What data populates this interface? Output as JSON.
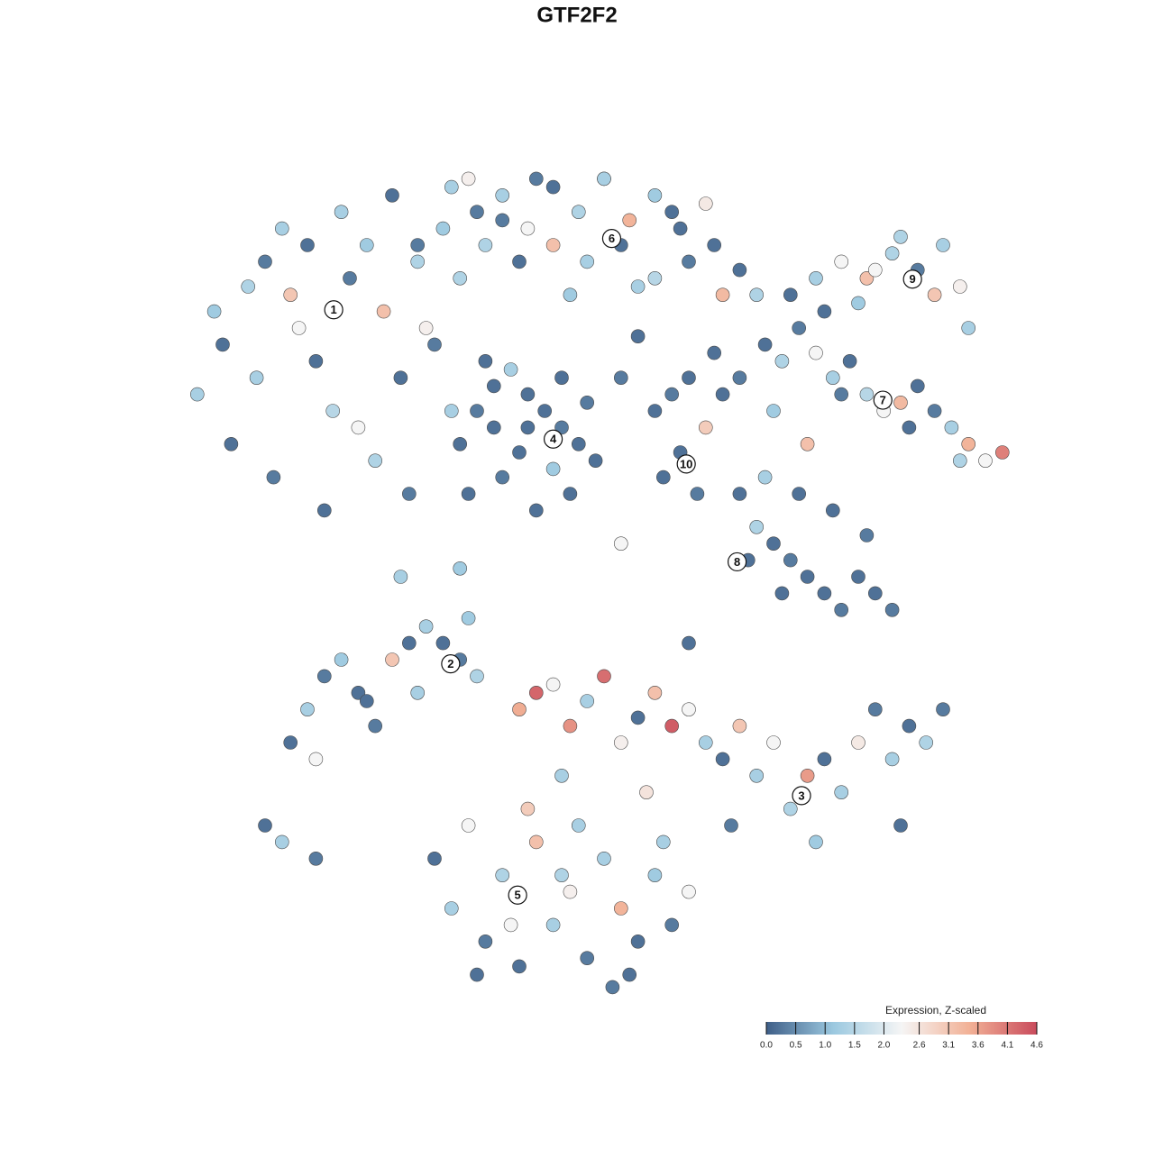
{
  "chart_data": {
    "type": "scatter",
    "title": "GTF2F2",
    "xlim": [
      0,
      100
    ],
    "ylim": [
      0,
      100
    ],
    "x": [
      2,
      5,
      8,
      10,
      12,
      14,
      16,
      18,
      20,
      22,
      24,
      26,
      28,
      30,
      32,
      6,
      11,
      17,
      23,
      29,
      4,
      9,
      15,
      21,
      27,
      33,
      13,
      19,
      25,
      31,
      35,
      38,
      41,
      44,
      47,
      50,
      53,
      56,
      59,
      62,
      28,
      32,
      36,
      40,
      44,
      48,
      52,
      56,
      60,
      64,
      66,
      68,
      34,
      42,
      50,
      58,
      46,
      54,
      38,
      63,
      33,
      35,
      37,
      39,
      41,
      43,
      45,
      47,
      49,
      34,
      38,
      42,
      46,
      36,
      40,
      44,
      48,
      37,
      41,
      45,
      56,
      58,
      60,
      62,
      64,
      57,
      61,
      59,
      52,
      54,
      66,
      63,
      72,
      75,
      78,
      81,
      84,
      87,
      90,
      92,
      80,
      76,
      89,
      93,
      85,
      82,
      69,
      71,
      73,
      75,
      77,
      79,
      81,
      83,
      85,
      87,
      89,
      91,
      93,
      95,
      97,
      70,
      74,
      78,
      86,
      92,
      66,
      68,
      70,
      72,
      74,
      76,
      78,
      80,
      82,
      84,
      69,
      73,
      77,
      81,
      67,
      71,
      13,
      15,
      17,
      19,
      21,
      23,
      25,
      27,
      29,
      31,
      33,
      35,
      16,
      22,
      28,
      34,
      40,
      42,
      44,
      46,
      48,
      50,
      52,
      54,
      56,
      58,
      60,
      62,
      64,
      66,
      68,
      70,
      72,
      74,
      76,
      78,
      80,
      82,
      84,
      86,
      88,
      45,
      55,
      65,
      75,
      85,
      30,
      32,
      34,
      36,
      38,
      40,
      42,
      44,
      46,
      48,
      50,
      52,
      54,
      56,
      58,
      60,
      35,
      41,
      47,
      53,
      39,
      45,
      51,
      57,
      10,
      12,
      16,
      26,
      33,
      60,
      52,
      90
    ],
    "y": [
      72,
      78,
      85,
      88,
      92,
      80,
      76,
      70,
      86,
      90,
      82,
      74,
      88,
      78,
      70,
      66,
      62,
      58,
      64,
      80,
      82,
      74,
      90,
      68,
      60,
      86,
      84,
      94,
      96,
      92,
      94,
      96,
      92,
      97,
      94,
      98,
      93,
      96,
      92,
      95,
      90,
      97,
      90,
      88,
      90,
      88,
      90,
      86,
      88,
      84,
      87,
      84,
      98,
      98,
      98,
      94,
      84,
      85,
      93,
      90,
      66,
      70,
      73,
      75,
      72,
      70,
      68,
      66,
      64,
      60,
      62,
      58,
      60,
      76,
      65,
      63,
      71,
      68,
      68,
      74,
      70,
      72,
      74,
      68,
      72,
      62,
      60,
      65,
      74,
      79,
      74,
      77,
      84,
      86,
      88,
      86,
      89,
      87,
      90,
      85,
      83,
      82,
      84,
      80,
      91,
      87,
      78,
      76,
      80,
      77,
      74,
      76,
      72,
      70,
      71,
      73,
      70,
      68,
      66,
      64,
      65,
      70,
      66,
      72,
      68,
      64,
      60,
      56,
      54,
      52,
      50,
      48,
      46,
      50,
      48,
      46,
      62,
      60,
      58,
      55,
      52,
      48,
      30,
      34,
      38,
      40,
      36,
      32,
      40,
      42,
      44,
      42,
      40,
      38,
      28,
      35,
      36,
      45,
      34,
      36,
      37,
      32,
      35,
      38,
      30,
      33,
      36,
      32,
      34,
      30,
      28,
      32,
      26,
      30,
      22,
      26,
      28,
      24,
      30,
      34,
      28,
      32,
      30,
      26,
      24,
      20,
      18,
      20,
      16,
      10,
      20,
      6,
      14,
      3,
      18,
      8,
      12,
      4,
      16,
      10,
      6,
      14,
      8,
      12,
      2,
      22,
      20,
      2,
      8,
      14,
      0.5,
      18,
      20,
      18,
      16,
      50,
      51,
      42,
      54,
      34
    ],
    "values": [
      1.3,
      0.2,
      1.4,
      0.3,
      1.3,
      2.3,
      0.2,
      1.5,
      0.3,
      1.2,
      3.2,
      0.2,
      1.4,
      0.3,
      1.3,
      0.2,
      0.3,
      0.2,
      1.4,
      2.4,
      1.2,
      1.3,
      0.2,
      2.3,
      0.3,
      1.4,
      3.1,
      1.3,
      0.2,
      1.2,
      0.3,
      1.3,
      2.3,
      0.2,
      1.4,
      0.3,
      3.4,
      1.2,
      0.2,
      2.5,
      0.3,
      1.3,
      1.4,
      0.2,
      3.2,
      1.3,
      0.2,
      1.5,
      0.3,
      3.3,
      0.2,
      1.4,
      2.4,
      0.3,
      1.3,
      0.2,
      1.2,
      1.3,
      0.3,
      0.2,
      0.2,
      0.3,
      0.2,
      1.3,
      0.2,
      0.2,
      0.3,
      0.2,
      0.2,
      0.2,
      0.3,
      0.2,
      0.2,
      0.2,
      0.2,
      1.2,
      0.3,
      0.2,
      0.2,
      0.2,
      0.2,
      0.3,
      0.2,
      3.0,
      0.2,
      0.2,
      0.3,
      0.2,
      0.3,
      0.2,
      0.3,
      0.2,
      0.2,
      1.3,
      2.3,
      3.2,
      1.4,
      0.3,
      1.3,
      2.4,
      1.2,
      0.2,
      3.1,
      1.3,
      1.4,
      2.3,
      0.2,
      1.4,
      0.3,
      2.3,
      1.3,
      0.2,
      1.5,
      2.3,
      3.3,
      0.2,
      0.3,
      1.3,
      3.4,
      2.3,
      4.0,
      1.2,
      3.2,
      0.3,
      0.2,
      1.4,
      0.2,
      1.4,
      0.2,
      0.3,
      0.2,
      0.2,
      0.3,
      0.2,
      0.2,
      0.3,
      1.3,
      0.2,
      0.2,
      0.3,
      0.2,
      0.2,
      0.2,
      1.3,
      0.3,
      1.2,
      0.2,
      0.3,
      3.1,
      0.2,
      1.3,
      0.2,
      0.3,
      1.4,
      2.3,
      0.2,
      1.3,
      1.2,
      3.5,
      4.3,
      2.3,
      3.8,
      1.3,
      4.2,
      2.4,
      0.2,
      3.2,
      4.4,
      2.3,
      1.3,
      0.2,
      3.1,
      1.3,
      2.3,
      1.4,
      3.7,
      0.2,
      1.3,
      2.5,
      0.3,
      1.3,
      0.2,
      1.4,
      1.3,
      2.6,
      0.3,
      1.2,
      0.2,
      0.2,
      1.3,
      2.3,
      0.3,
      1.4,
      0.2,
      3.2,
      1.3,
      2.4,
      0.3,
      1.3,
      3.4,
      0.2,
      1.2,
      0.3,
      2.3,
      0.2,
      3.0,
      1.3,
      0.2,
      2.3,
      1.4,
      0.3,
      1.3,
      0.2,
      1.3,
      0.3,
      1.3,
      1.2,
      0.2,
      2.3,
      0.3
    ],
    "annotations": [
      {
        "text": "1",
        "x": 18.1,
        "y": 82.2
      },
      {
        "text": "2",
        "x": 31.9,
        "y": 39.5
      },
      {
        "text": "3",
        "x": 73.3,
        "y": 23.6
      },
      {
        "text": "4",
        "x": 44.0,
        "y": 66.6
      },
      {
        "text": "5",
        "x": 39.8,
        "y": 11.6
      },
      {
        "text": "6",
        "x": 50.9,
        "y": 90.8
      },
      {
        "text": "7",
        "x": 82.9,
        "y": 71.3
      },
      {
        "text": "8",
        "x": 65.7,
        "y": 51.8
      },
      {
        "text": "9",
        "x": 86.4,
        "y": 85.9
      },
      {
        "text": "10",
        "x": 59.7,
        "y": 63.6
      }
    ],
    "colorbar": {
      "title": "Expression, Z-scaled",
      "clim": [
        0,
        4.6
      ],
      "colors": [
        "#3f5f88",
        "#9cc9e0",
        "#f5f5f5",
        "#f2b196",
        "#c94b5c"
      ],
      "ticks": [
        {
          "value": 0,
          "label": "0.0"
        },
        0.5,
        {
          "value": 1,
          "label": "1.0"
        },
        1.5,
        {
          "value": 2,
          "label": "2.0"
        },
        2.6,
        3.1,
        3.6,
        4.1,
        4.6
      ]
    }
  }
}
